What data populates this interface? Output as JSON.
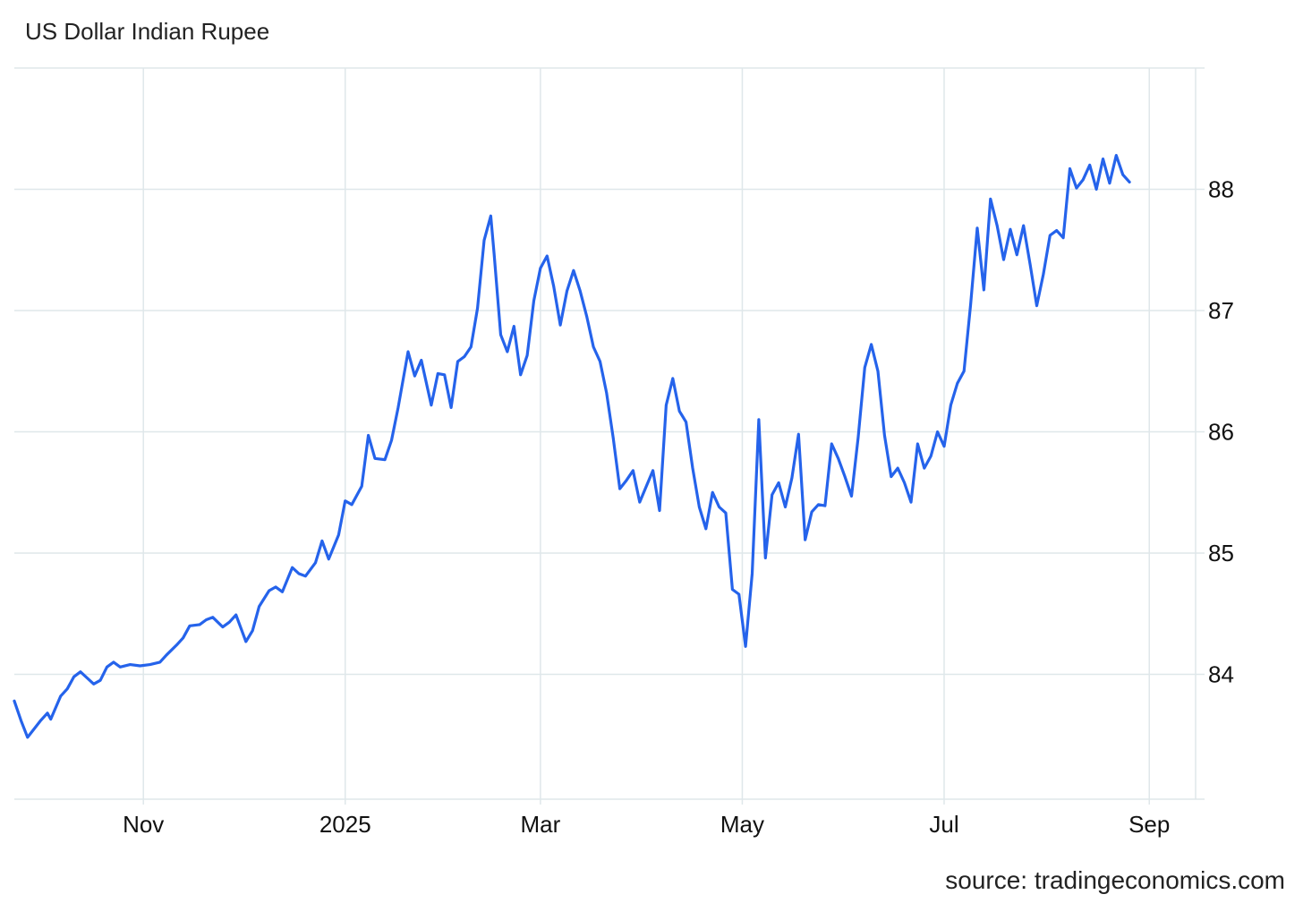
{
  "header": {
    "title": "US Dollar Indian Rupee"
  },
  "footer": {
    "source": "source: tradingeconomics.com"
  },
  "chart_data": {
    "type": "line",
    "title": "US Dollar Indian Rupee",
    "xlabel": "",
    "ylabel": "",
    "ylim": [
      82.97,
      89.0
    ],
    "xlim": [
      "2024-09-23",
      "2025-09-15"
    ],
    "y_ticks": [
      "84",
      "85",
      "86",
      "87",
      "88"
    ],
    "x_ticks": [
      {
        "label": "Nov",
        "date": "2024-11-01"
      },
      {
        "label": "2025",
        "date": "2025-01-01"
      },
      {
        "label": "Mar",
        "date": "2025-03-01"
      },
      {
        "label": "May",
        "date": "2025-05-01"
      },
      {
        "label": "Jul",
        "date": "2025-07-01"
      },
      {
        "label": "Sep",
        "date": "2025-09-01"
      }
    ],
    "grid": true,
    "colors": {
      "line": "#2563eb",
      "grid": "#dfe7ea"
    },
    "series": [
      {
        "points": [
          [
            "2024-09-23",
            83.78
          ],
          [
            "2024-09-25",
            83.62
          ],
          [
            "2024-09-27",
            83.48
          ],
          [
            "2024-09-29",
            83.55
          ],
          [
            "2024-10-01",
            83.62
          ],
          [
            "2024-10-03",
            83.68
          ],
          [
            "2024-10-04",
            83.63
          ],
          [
            "2024-10-07",
            83.82
          ],
          [
            "2024-10-09",
            83.88
          ],
          [
            "2024-10-11",
            83.98
          ],
          [
            "2024-10-13",
            84.02
          ],
          [
            "2024-10-15",
            83.97
          ],
          [
            "2024-10-17",
            83.92
          ],
          [
            "2024-10-19",
            83.95
          ],
          [
            "2024-10-21",
            84.06
          ],
          [
            "2024-10-23",
            84.1
          ],
          [
            "2024-10-25",
            84.06
          ],
          [
            "2024-10-28",
            84.08
          ],
          [
            "2024-10-31",
            84.07
          ],
          [
            "2024-11-03",
            84.08
          ],
          [
            "2024-11-06",
            84.1
          ],
          [
            "2024-11-08",
            84.16
          ],
          [
            "2024-11-11",
            84.24
          ],
          [
            "2024-11-13",
            84.3
          ],
          [
            "2024-11-15",
            84.4
          ],
          [
            "2024-11-18",
            84.41
          ],
          [
            "2024-11-20",
            84.45
          ],
          [
            "2024-11-22",
            84.47
          ],
          [
            "2024-11-25",
            84.39
          ],
          [
            "2024-11-27",
            84.43
          ],
          [
            "2024-11-29",
            84.49
          ],
          [
            "2024-12-02",
            84.27
          ],
          [
            "2024-12-04",
            84.36
          ],
          [
            "2024-12-06",
            84.56
          ],
          [
            "2024-12-09",
            84.69
          ],
          [
            "2024-12-11",
            84.72
          ],
          [
            "2024-12-13",
            84.68
          ],
          [
            "2024-12-16",
            84.88
          ],
          [
            "2024-12-18",
            84.83
          ],
          [
            "2024-12-20",
            84.81
          ],
          [
            "2024-12-23",
            84.92
          ],
          [
            "2024-12-25",
            85.1
          ],
          [
            "2024-12-27",
            84.95
          ],
          [
            "2024-12-30",
            85.15
          ],
          [
            "2025-01-01",
            85.43
          ],
          [
            "2025-01-03",
            85.4
          ],
          [
            "2025-01-06",
            85.55
          ],
          [
            "2025-01-08",
            85.97
          ],
          [
            "2025-01-10",
            85.78
          ],
          [
            "2025-01-13",
            85.77
          ],
          [
            "2025-01-15",
            85.93
          ],
          [
            "2025-01-17",
            86.2
          ],
          [
            "2025-01-20",
            86.66
          ],
          [
            "2025-01-22",
            86.46
          ],
          [
            "2025-01-24",
            86.59
          ],
          [
            "2025-01-27",
            86.22
          ],
          [
            "2025-01-29",
            86.48
          ],
          [
            "2025-01-31",
            86.47
          ],
          [
            "2025-02-02",
            86.2
          ],
          [
            "2025-02-04",
            86.58
          ],
          [
            "2025-02-06",
            86.62
          ],
          [
            "2025-02-08",
            86.7
          ],
          [
            "2025-02-10",
            87.02
          ],
          [
            "2025-02-12",
            87.58
          ],
          [
            "2025-02-14",
            87.78
          ],
          [
            "2025-02-15",
            87.47
          ],
          [
            "2025-02-17",
            86.8
          ],
          [
            "2025-02-19",
            86.66
          ],
          [
            "2025-02-21",
            86.87
          ],
          [
            "2025-02-23",
            86.47
          ],
          [
            "2025-02-25",
            86.63
          ],
          [
            "2025-02-27",
            87.08
          ],
          [
            "2025-03-01",
            87.35
          ],
          [
            "2025-03-03",
            87.45
          ],
          [
            "2025-03-05",
            87.2
          ],
          [
            "2025-03-07",
            86.88
          ],
          [
            "2025-03-09",
            87.16
          ],
          [
            "2025-03-11",
            87.33
          ],
          [
            "2025-03-13",
            87.16
          ],
          [
            "2025-03-15",
            86.95
          ],
          [
            "2025-03-17",
            86.7
          ],
          [
            "2025-03-19",
            86.58
          ],
          [
            "2025-03-21",
            86.32
          ],
          [
            "2025-03-23",
            85.95
          ],
          [
            "2025-03-25",
            85.53
          ],
          [
            "2025-03-27",
            85.6
          ],
          [
            "2025-03-29",
            85.68
          ],
          [
            "2025-03-31",
            85.42
          ],
          [
            "2025-04-02",
            85.55
          ],
          [
            "2025-04-04",
            85.68
          ],
          [
            "2025-04-06",
            85.35
          ],
          [
            "2025-04-08",
            86.22
          ],
          [
            "2025-04-10",
            86.44
          ],
          [
            "2025-04-12",
            86.17
          ],
          [
            "2025-04-14",
            86.08
          ],
          [
            "2025-04-16",
            85.7
          ],
          [
            "2025-04-18",
            85.38
          ],
          [
            "2025-04-20",
            85.2
          ],
          [
            "2025-04-22",
            85.5
          ],
          [
            "2025-04-24",
            85.38
          ],
          [
            "2025-04-26",
            85.33
          ],
          [
            "2025-04-28",
            84.7
          ],
          [
            "2025-04-30",
            84.66
          ],
          [
            "2025-05-02",
            84.23
          ],
          [
            "2025-05-04",
            84.83
          ],
          [
            "2025-05-06",
            86.1
          ],
          [
            "2025-05-08",
            84.96
          ],
          [
            "2025-05-10",
            85.48
          ],
          [
            "2025-05-12",
            85.58
          ],
          [
            "2025-05-14",
            85.38
          ],
          [
            "2025-05-16",
            85.62
          ],
          [
            "2025-05-18",
            85.98
          ],
          [
            "2025-05-20",
            85.11
          ],
          [
            "2025-05-22",
            85.34
          ],
          [
            "2025-05-24",
            85.4
          ],
          [
            "2025-05-26",
            85.39
          ],
          [
            "2025-05-28",
            85.9
          ],
          [
            "2025-05-30",
            85.78
          ],
          [
            "2025-06-01",
            85.63
          ],
          [
            "2025-06-03",
            85.47
          ],
          [
            "2025-06-05",
            85.95
          ],
          [
            "2025-06-07",
            86.53
          ],
          [
            "2025-06-09",
            86.72
          ],
          [
            "2025-06-11",
            86.5
          ],
          [
            "2025-06-13",
            85.97
          ],
          [
            "2025-06-15",
            85.63
          ],
          [
            "2025-06-17",
            85.7
          ],
          [
            "2025-06-19",
            85.58
          ],
          [
            "2025-06-21",
            85.42
          ],
          [
            "2025-06-23",
            85.9
          ],
          [
            "2025-06-25",
            85.7
          ],
          [
            "2025-06-27",
            85.8
          ],
          [
            "2025-06-29",
            86.0
          ],
          [
            "2025-07-01",
            85.88
          ],
          [
            "2025-07-03",
            86.22
          ],
          [
            "2025-07-05",
            86.4
          ],
          [
            "2025-07-07",
            86.5
          ],
          [
            "2025-07-09",
            87.05
          ],
          [
            "2025-07-11",
            87.68
          ],
          [
            "2025-07-13",
            87.17
          ],
          [
            "2025-07-15",
            87.92
          ],
          [
            "2025-07-17",
            87.7
          ],
          [
            "2025-07-19",
            87.42
          ],
          [
            "2025-07-21",
            87.67
          ],
          [
            "2025-07-23",
            87.46
          ],
          [
            "2025-07-25",
            87.7
          ],
          [
            "2025-07-27",
            87.38
          ],
          [
            "2025-07-29",
            87.04
          ],
          [
            "2025-07-31",
            87.3
          ],
          [
            "2025-08-02",
            87.62
          ],
          [
            "2025-08-04",
            87.66
          ],
          [
            "2025-08-06",
            87.6
          ],
          [
            "2025-08-08",
            88.17
          ],
          [
            "2025-08-10",
            88.01
          ],
          [
            "2025-08-12",
            88.08
          ],
          [
            "2025-08-14",
            88.2
          ],
          [
            "2025-08-16",
            88.0
          ],
          [
            "2025-08-18",
            88.25
          ],
          [
            "2025-08-20",
            88.05
          ],
          [
            "2025-08-22",
            88.28
          ],
          [
            "2025-08-24",
            88.12
          ],
          [
            "2025-08-26",
            88.06
          ]
        ]
      }
    ]
  }
}
